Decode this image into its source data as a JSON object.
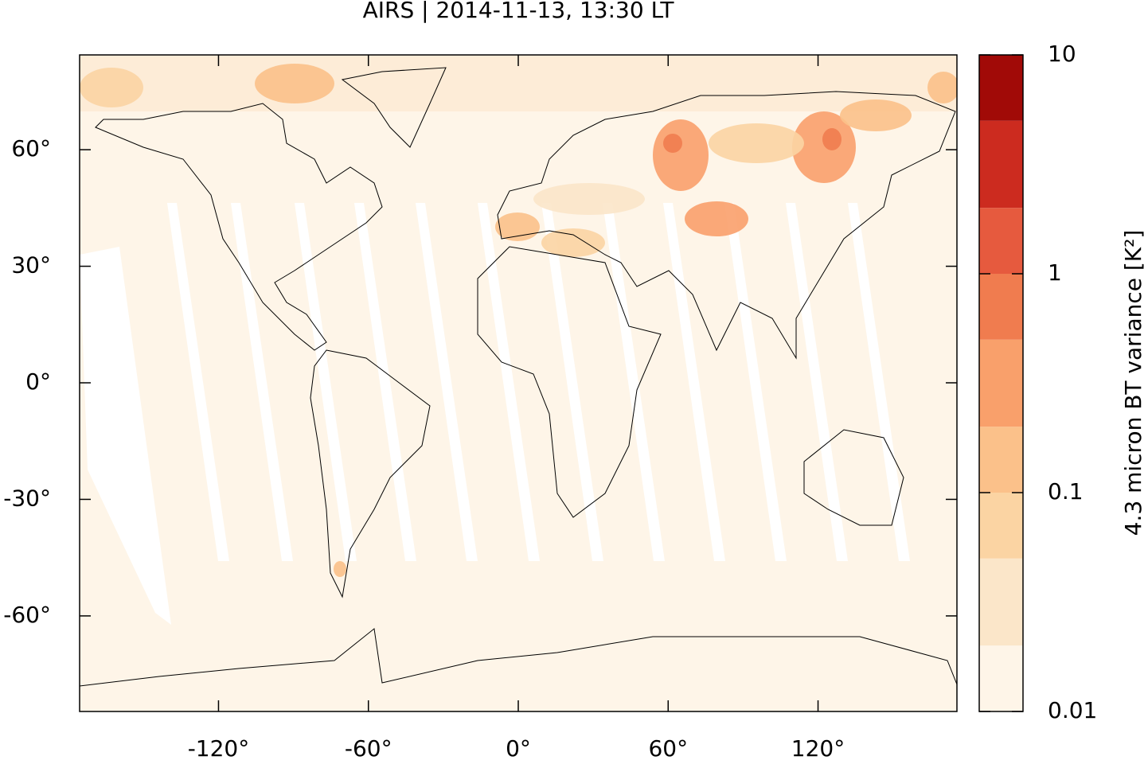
{
  "title": "AIRS | 2014-11-13, 13:30 LT",
  "map": {
    "xlim": [
      -175.6,
      175.6
    ],
    "ylim": [
      -84.6,
      84.4
    ],
    "xticks": [
      {
        "value": -120,
        "label": "-120°"
      },
      {
        "value": -60,
        "label": "-60°"
      },
      {
        "value": 0,
        "label": "0°"
      },
      {
        "value": 60,
        "label": "60°"
      },
      {
        "value": 120,
        "label": "120°"
      }
    ],
    "yticks": [
      {
        "value": -60,
        "label": "-60°"
      },
      {
        "value": -30,
        "label": "-30°"
      },
      {
        "value": 0,
        "label": "0°"
      },
      {
        "value": 30,
        "label": "30°"
      },
      {
        "value": 60,
        "label": "60°"
      }
    ]
  },
  "colorbar": {
    "label": "4.3 micron BT variance [K²]",
    "scale": "log",
    "lim": [
      0.01,
      10
    ],
    "ticks": [
      0.01,
      0.1,
      1,
      10
    ],
    "levels": [
      0.01,
      0.02,
      0.05,
      0.1,
      0.2,
      0.5,
      1,
      2,
      5,
      10
    ],
    "colors": [
      "#fef5e8",
      "#fbe6c9",
      "#fbd4a3",
      "#fbc18a",
      "#f9a06b",
      "#f07c4f",
      "#e65a3e",
      "#cc2b1f",
      "#a10a07"
    ]
  }
}
